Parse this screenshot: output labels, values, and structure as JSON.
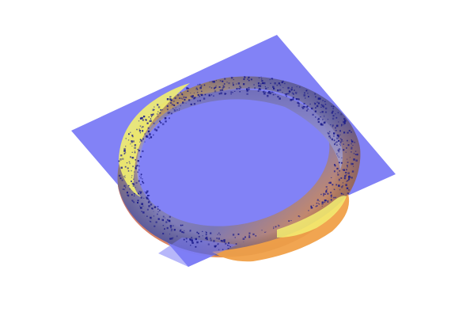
{
  "scene": {
    "background_color": "#ffffff",
    "plane_color": "#7b7bf5",
    "torus_colors": {
      "shadow_blue": "#33329a",
      "mid_purple": "#7b78b6",
      "warm_orange": "#f29a4a",
      "highlight_yellow": "#f0f070",
      "inner_wall": "#9a98cc"
    },
    "speckle_color": "#1a1a8a"
  }
}
